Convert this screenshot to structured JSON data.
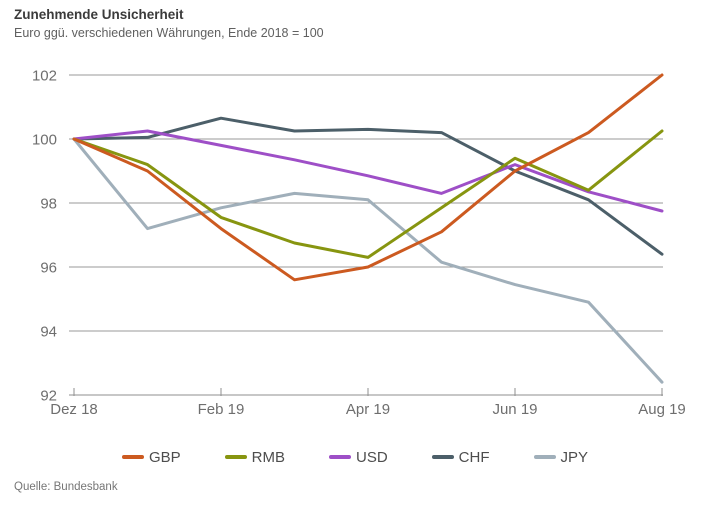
{
  "header": {
    "title": "Zunehmende Unsicherheit",
    "subtitle": "Euro ggü. verschiedenen Währungen, Ende 2018 = 100"
  },
  "footer": {
    "source": "Quelle: Bundesbank"
  },
  "colors": {
    "gridline": "#9a9a9a",
    "axis_baseline": "#8f8f8f",
    "axis_text": "#6e6e6e",
    "title_text": "#3b3b3b",
    "subtitle_text": "#606060",
    "legend_text": "#4d4d4d"
  },
  "chart_data": {
    "type": "line",
    "x": [
      "Dez 18",
      "Jan 19",
      "Feb 19",
      "Mär 19",
      "Apr 19",
      "Mai 19",
      "Jun 19",
      "Jul 19",
      "Aug 19"
    ],
    "x_tick_labels": [
      "Dez 18",
      "Feb 19",
      "Apr 19",
      "Jun 19",
      "Aug 19"
    ],
    "x_tick_indices": [
      0,
      2,
      4,
      6,
      8
    ],
    "y_ticks": [
      92,
      94,
      96,
      98,
      100,
      102
    ],
    "ylim": [
      92,
      102
    ],
    "grid": "horizontal-only",
    "legend_position": "bottom",
    "title": "Zunehmende Unsicherheit",
    "subtitle": "Euro ggü. verschiedenen Währungen, Ende 2018 = 100",
    "source": "Quelle: Bundesbank",
    "series": [
      {
        "name": "GBP",
        "color": "#cc5a20",
        "values": [
          100,
          99.0,
          97.2,
          95.6,
          96.0,
          97.1,
          99.0,
          100.2,
          102.0
        ]
      },
      {
        "name": "RMB",
        "color": "#879510",
        "values": [
          100,
          99.2,
          97.55,
          96.75,
          96.3,
          97.85,
          99.4,
          98.4,
          100.25
        ]
      },
      {
        "name": "USD",
        "color": "#9e4fc7",
        "values": [
          100,
          100.25,
          99.8,
          99.35,
          98.85,
          98.3,
          99.2,
          98.35,
          97.75
        ]
      },
      {
        "name": "CHF",
        "color": "#4c5f69",
        "values": [
          100,
          100.05,
          100.65,
          100.25,
          100.3,
          100.2,
          99.0,
          98.1,
          96.4
        ]
      },
      {
        "name": "JPY",
        "color": "#a0afba",
        "values": [
          100,
          97.2,
          97.85,
          98.3,
          98.1,
          96.15,
          95.45,
          94.9,
          92.4
        ]
      }
    ]
  }
}
